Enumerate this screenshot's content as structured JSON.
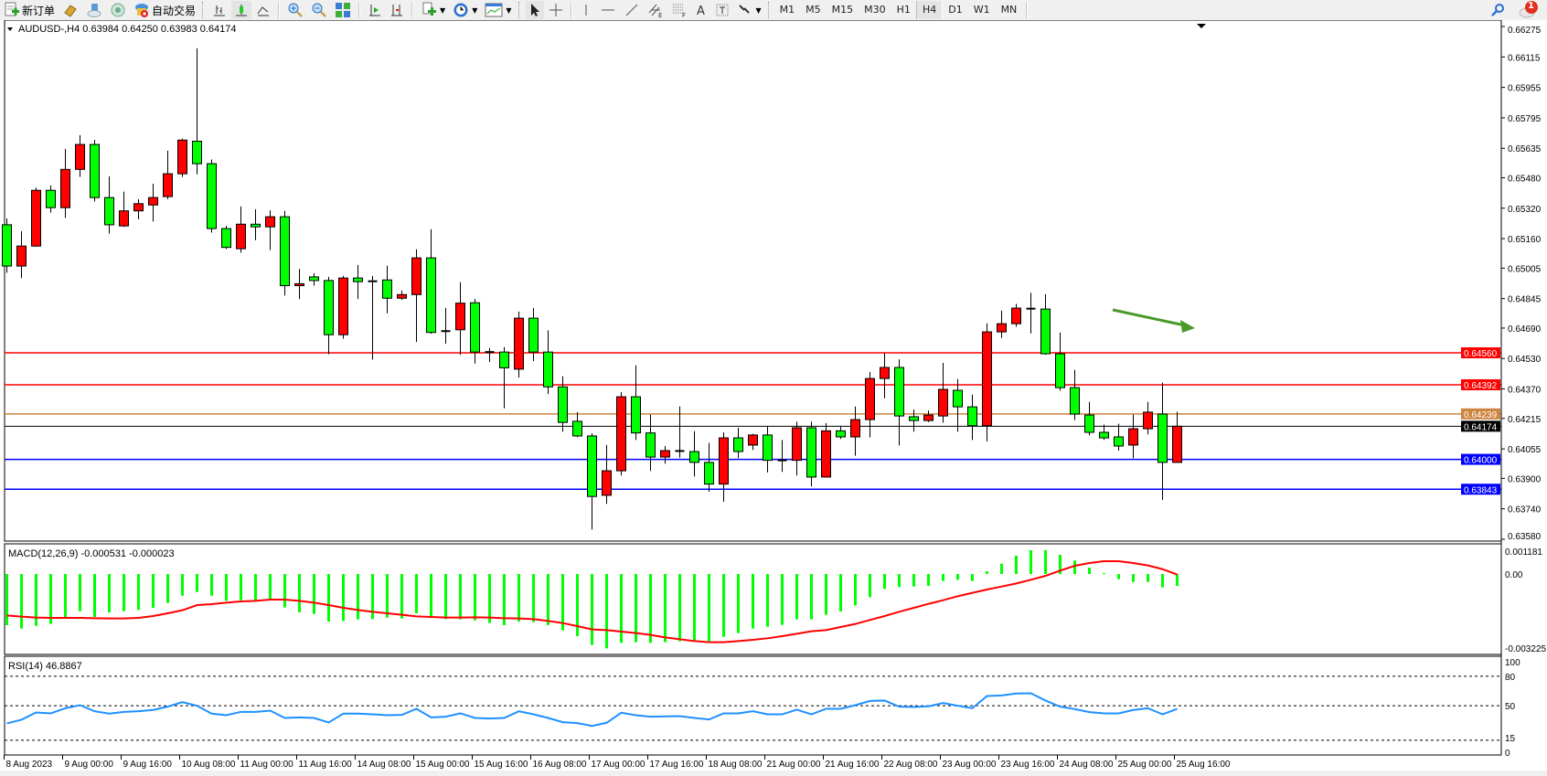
{
  "toolbar": {
    "new_order_label": "新订单",
    "auto_trading_label": "自动交易",
    "timeframes": [
      "M1",
      "M5",
      "M15",
      "M30",
      "H1",
      "H4",
      "D1",
      "W1",
      "MN"
    ],
    "active_timeframe": "H4",
    "notification_count": "1"
  },
  "chart": {
    "header": "AUDUSD-,H4  0.63984 0.64250 0.63983 0.64174",
    "symbol": "AUDUSD-",
    "timeframe": "H4",
    "ohlc": {
      "open": 0.63984,
      "high": 0.6425,
      "low": 0.63983,
      "close": 0.64174
    },
    "colors": {
      "up": "#ff0000",
      "down": "#00ff00",
      "outline": "#000000",
      "macd_hist": "#00ff00",
      "macd_signal": "#ff0000",
      "rsi": "#1e90ff",
      "arrow": "#4a9a2a"
    },
    "price_ticks": [
      "0.66275",
      "0.66115",
      "0.65955",
      "0.65795",
      "0.65635",
      "0.65480",
      "0.65320",
      "0.65160",
      "0.65005",
      "0.64845",
      "0.64690",
      "0.64530",
      "0.64370",
      "0.64215",
      "0.64055",
      "0.63900",
      "0.63740",
      "0.63580"
    ],
    "price_range": [
      0.6358,
      0.66275
    ],
    "levels": [
      {
        "price": 0.6456,
        "label": "0.64560",
        "color": "#ff0000"
      },
      {
        "price": 0.64392,
        "label": "0.64392",
        "color": "#ff0000"
      },
      {
        "price": 0.64239,
        "label": "0.64239",
        "color": "#cd853f"
      },
      {
        "price": 0.64174,
        "label": "0.64174",
        "color": "#000000"
      },
      {
        "price": 0.64,
        "label": "0.64000",
        "color": "#0000ff"
      },
      {
        "price": 0.63843,
        "label": "0.63843",
        "color": "#0000ff"
      }
    ],
    "time_labels": [
      "8 Aug 2023",
      "9 Aug 00:00",
      "9 Aug 16:00",
      "10 Aug 08:00",
      "11 Aug 00:00",
      "11 Aug 16:00",
      "14 Aug 08:00",
      "15 Aug 00:00",
      "15 Aug 16:00",
      "16 Aug 08:00",
      "17 Aug 00:00",
      "17 Aug 16:00",
      "18 Aug 08:00",
      "21 Aug 00:00",
      "21 Aug 16:00",
      "22 Aug 08:00",
      "23 Aug 00:00",
      "23 Aug 16:00",
      "24 Aug 08:00",
      "25 Aug 00:00",
      "25 Aug 16:00"
    ]
  },
  "chart_data": {
    "type": "candlestick",
    "ylim": [
      0.6358,
      0.66275
    ],
    "candles_ohlc": [
      [
        0.65233,
        0.65266,
        0.64981,
        0.65016
      ],
      [
        0.65016,
        0.65199,
        0.64952,
        0.65121
      ],
      [
        0.65121,
        0.65428,
        0.65118,
        0.65414
      ],
      [
        0.65414,
        0.6544,
        0.65297,
        0.65323
      ],
      [
        0.65323,
        0.65632,
        0.65269,
        0.65524
      ],
      [
        0.65524,
        0.65704,
        0.65484,
        0.65655
      ],
      [
        0.65655,
        0.65679,
        0.65355,
        0.65376
      ],
      [
        0.65376,
        0.65487,
        0.65187,
        0.65233
      ],
      [
        0.65227,
        0.65407,
        0.65222,
        0.65306
      ],
      [
        0.65306,
        0.65367,
        0.65262,
        0.65344
      ],
      [
        0.65337,
        0.65449,
        0.6525,
        0.65376
      ],
      [
        0.65381,
        0.65622,
        0.65367,
        0.65501
      ],
      [
        0.65501,
        0.65686,
        0.65484,
        0.65678
      ],
      [
        0.65672,
        0.66161,
        0.65498,
        0.65554
      ],
      [
        0.65554,
        0.65576,
        0.65192,
        0.65213
      ],
      [
        0.65213,
        0.65227,
        0.65105,
        0.65114
      ],
      [
        0.65107,
        0.65329,
        0.65086,
        0.65236
      ],
      [
        0.65236,
        0.65315,
        0.65152,
        0.65222
      ],
      [
        0.65222,
        0.65309,
        0.651,
        0.65275
      ],
      [
        0.65275,
        0.65306,
        0.64861,
        0.64913
      ],
      [
        0.64913,
        0.65001,
        0.64843,
        0.64923
      ],
      [
        0.64959,
        0.64978,
        0.64913,
        0.6494
      ],
      [
        0.6494,
        0.64959,
        0.64552,
        0.64655
      ],
      [
        0.64655,
        0.64964,
        0.64634,
        0.64953
      ],
      [
        0.64953,
        0.65021,
        0.64843,
        0.64934
      ],
      [
        0.64936,
        0.64964,
        0.64524,
        0.64936
      ],
      [
        0.64943,
        0.65018,
        0.64768,
        0.64847
      ],
      [
        0.64847,
        0.64887,
        0.64838,
        0.64866
      ],
      [
        0.64866,
        0.65104,
        0.64617,
        0.65059
      ],
      [
        0.65059,
        0.6521,
        0.6466,
        0.64667
      ],
      [
        0.64667,
        0.64796,
        0.64608,
        0.64674
      ],
      [
        0.64681,
        0.64931,
        0.6455,
        0.64821
      ],
      [
        0.64823,
        0.64843,
        0.64503,
        0.64564
      ],
      [
        0.64564,
        0.64585,
        0.64512,
        0.6456
      ],
      [
        0.64564,
        0.6459,
        0.64268,
        0.64481
      ],
      [
        0.64474,
        0.64777,
        0.6443,
        0.64742
      ],
      [
        0.64742,
        0.64796,
        0.64517,
        0.64564
      ],
      [
        0.64564,
        0.64678,
        0.64343,
        0.64381
      ],
      [
        0.64381,
        0.64437,
        0.64145,
        0.64194
      ],
      [
        0.642,
        0.64248,
        0.64116,
        0.64123
      ],
      [
        0.64123,
        0.64137,
        0.63631,
        0.63805
      ],
      [
        0.63811,
        0.64076,
        0.63766,
        0.6394
      ],
      [
        0.6394,
        0.64353,
        0.63915,
        0.64329
      ],
      [
        0.64329,
        0.64494,
        0.64102,
        0.64139
      ],
      [
        0.64139,
        0.64235,
        0.63939,
        0.64012
      ],
      [
        0.64012,
        0.6407,
        0.63977,
        0.64046
      ],
      [
        0.64044,
        0.64278,
        0.64009,
        0.64044
      ],
      [
        0.64041,
        0.64148,
        0.6391,
        0.63984
      ],
      [
        0.63984,
        0.64086,
        0.6383,
        0.6387
      ],
      [
        0.6387,
        0.64142,
        0.63777,
        0.64113
      ],
      [
        0.64113,
        0.64166,
        0.64006,
        0.64041
      ],
      [
        0.64075,
        0.64134,
        0.64049,
        0.64128
      ],
      [
        0.64128,
        0.64174,
        0.63931,
        0.63995
      ],
      [
        0.63995,
        0.64102,
        0.63934,
        0.63995
      ],
      [
        0.63995,
        0.64198,
        0.63915,
        0.64166
      ],
      [
        0.64166,
        0.64198,
        0.63858,
        0.63907
      ],
      [
        0.63907,
        0.6419,
        0.63907,
        0.6415
      ],
      [
        0.6415,
        0.64174,
        0.64107,
        0.64118
      ],
      [
        0.64118,
        0.64278,
        0.64019,
        0.64209
      ],
      [
        0.64209,
        0.64459,
        0.64115,
        0.64425
      ],
      [
        0.64425,
        0.64558,
        0.64321,
        0.64483
      ],
      [
        0.64483,
        0.64526,
        0.64073,
        0.64228
      ],
      [
        0.64224,
        0.64262,
        0.64145,
        0.64204
      ],
      [
        0.64204,
        0.64257,
        0.64196,
        0.64233
      ],
      [
        0.64228,
        0.64507,
        0.64193,
        0.64368
      ],
      [
        0.64363,
        0.64422,
        0.64145,
        0.64276
      ],
      [
        0.64276,
        0.6434,
        0.64102,
        0.64177
      ],
      [
        0.64177,
        0.64715,
        0.64094,
        0.6467
      ],
      [
        0.6467,
        0.64782,
        0.64638,
        0.64713
      ],
      [
        0.64713,
        0.64817,
        0.64697,
        0.64795
      ],
      [
        0.64792,
        0.64875,
        0.64662,
        0.64792
      ],
      [
        0.6479,
        0.64868,
        0.6455,
        0.64555
      ],
      [
        0.64555,
        0.64667,
        0.64361,
        0.64377
      ],
      [
        0.64377,
        0.6447,
        0.64206,
        0.64238
      ],
      [
        0.64233,
        0.64302,
        0.64126,
        0.64142
      ],
      [
        0.64142,
        0.64182,
        0.64102,
        0.64113
      ],
      [
        0.64118,
        0.64187,
        0.64046,
        0.6407
      ],
      [
        0.64075,
        0.64235,
        0.64006,
        0.64161
      ],
      [
        0.64161,
        0.64302,
        0.64131,
        0.64248
      ],
      [
        0.64238,
        0.64403,
        0.63787,
        0.63984
      ],
      [
        0.63984,
        0.6425,
        0.63983,
        0.64174
      ]
    ],
    "macd": {
      "label": "MACD(12,26,9) -0.000531 -0.000023",
      "ticks": [
        "0.001181",
        "0.00",
        "-0.003225"
      ],
      "ylim": [
        -0.003225,
        0.001181
      ],
      "histogram": [
        -0.002285,
        -0.002434,
        -0.002312,
        -0.00223,
        -0.001918,
        -0.001659,
        -0.001918,
        -0.001714,
        -0.001659,
        -0.001605,
        -0.00151,
        -0.001292,
        -0.000966,
        -0.000802,
        -0.000966,
        -0.001197,
        -0.00117,
        -0.001197,
        -0.00117,
        -0.001496,
        -0.001714,
        -0.001782,
        -0.002122,
        -0.002094,
        -0.002026,
        -0.002013,
        -0.001945,
        -0.001986,
        -0.001754,
        -0.001958,
        -0.002013,
        -0.002026,
        -0.002067,
        -0.00219,
        -0.002285,
        -0.002122,
        -0.002149,
        -0.002285,
        -0.002516,
        -0.002774,
        -0.003169,
        -0.003319,
        -0.003074,
        -0.003046,
        -0.003074,
        -0.003046,
        -0.003006,
        -0.003006,
        -0.003006,
        -0.002802,
        -0.002638,
        -0.002434,
        -0.002353,
        -0.002271,
        -0.002026,
        -0.002026,
        -0.001822,
        -0.001673,
        -0.001401,
        -0.001034,
        -0.000666,
        -0.000585,
        -0.000558,
        -0.00053,
        -0.000313,
        -0.000258,
        -0.000313,
        0.000122,
        0.000462,
        0.000816,
        0.001061,
        0.001061,
        0.000857,
        0.000598,
        0.000286,
        4.1e-05,
        -0.000231,
        -0.000354,
        -0.000354,
        -0.000598,
        -0.000531
      ],
      "signal": [
        -0.00185,
        -0.001904,
        -0.001945,
        -0.001958,
        -0.001958,
        -0.001958,
        -0.001972,
        -0.001986,
        -0.001986,
        -0.001958,
        -0.001877,
        -0.001754,
        -0.001618,
        -0.001387,
        -0.001346,
        -0.001278,
        -0.001224,
        -0.001197,
        -0.001142,
        -0.001142,
        -0.001197,
        -0.001278,
        -0.001387,
        -0.00151,
        -0.001605,
        -0.001686,
        -0.001754,
        -0.001822,
        -0.00189,
        -0.001918,
        -0.001945,
        -0.001945,
        -0.001931,
        -0.001945,
        -0.001972,
        -0.001986,
        -0.002013,
        -0.002094,
        -0.00219,
        -0.002326,
        -0.002475,
        -0.002502,
        -0.00257,
        -0.002638,
        -0.00272,
        -0.002829,
        -0.00291,
        -0.002992,
        -0.003046,
        -0.003046,
        -0.002992,
        -0.002938,
        -0.002869,
        -0.002774,
        -0.002666,
        -0.002557,
        -0.002502,
        -0.002366,
        -0.00223,
        -0.002054,
        -0.001877,
        -0.001686,
        -0.00151,
        -0.001333,
        -0.00117,
        -0.000993,
        -0.000843,
        -0.000694,
        -0.000558,
        -0.000422,
        -0.000258,
        -8.2e-05,
        0.00015,
        0.000367,
        0.00049,
        0.000571,
        0.000571,
        0.00049,
        0.000381,
        0.000218,
        -2.3e-05
      ]
    },
    "rsi": {
      "label": "RSI(14) 46.8867",
      "ticks": [
        "100",
        "80",
        "50",
        "15",
        "0"
      ],
      "levels": [
        80,
        50,
        15
      ],
      "ylim": [
        0,
        100
      ],
      "values": [
        32.1,
        35.8,
        43.2,
        42.3,
        47.5,
        50.6,
        44.4,
        42.0,
        43.8,
        44.4,
        45.7,
        49.1,
        53.7,
        50.0,
        42.0,
        40.4,
        43.8,
        43.8,
        45.0,
        37.6,
        38.2,
        37.6,
        33.0,
        42.0,
        42.0,
        41.3,
        40.4,
        40.7,
        46.9,
        38.2,
        38.9,
        42.3,
        37.6,
        37.0,
        37.6,
        44.4,
        41.3,
        37.6,
        33.3,
        32.4,
        29.5,
        32.7,
        42.9,
        40.4,
        38.9,
        39.2,
        39.5,
        37.6,
        36.1,
        42.3,
        42.3,
        44.4,
        41.3,
        41.3,
        46.0,
        41.3,
        46.9,
        46.9,
        50.6,
        54.9,
        55.3,
        49.1,
        48.8,
        49.4,
        52.8,
        50.0,
        47.5,
        59.9,
        60.5,
        62.4,
        62.7,
        55.3,
        49.1,
        46.6,
        43.5,
        42.3,
        42.3,
        45.7,
        47.5,
        41.3,
        46.8867
      ]
    }
  }
}
